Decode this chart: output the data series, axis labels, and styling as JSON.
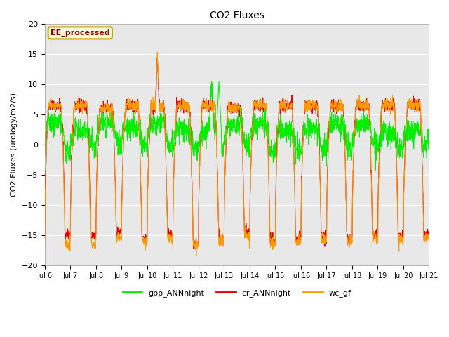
{
  "title": "CO2 Fluxes",
  "ylabel": "CO2 Fluxes (urology/m2/s)",
  "xlabel": "",
  "ylim": [
    -20,
    20
  ],
  "annotation_text": "EE_processed",
  "annotation_color": "#8B0000",
  "annotation_bg": "#FFFFDD",
  "annotation_border": "#BBAA00",
  "bg_color": "#E8E8E8",
  "grid_color": "white",
  "line_green": "#00EE00",
  "line_red": "#DD0000",
  "line_orange": "#FF9900",
  "legend_labels": [
    "gpp_ANNnight",
    "er_ANNnight",
    "wc_gf"
  ],
  "n_points": 2160,
  "start_day": 6,
  "end_day": 21,
  "font_size_title": 10,
  "font_size_axis": 8,
  "font_size_tick": 7,
  "font_size_legend": 8,
  "figwidth": 6.4,
  "figheight": 4.8
}
